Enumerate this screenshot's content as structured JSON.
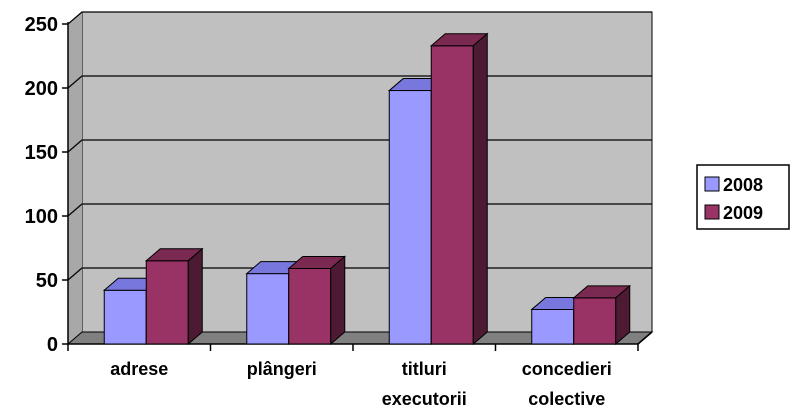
{
  "chart_data": {
    "type": "bar",
    "style": "3d-clustered-column",
    "categories": [
      [
        "adrese"
      ],
      [
        "plângeri"
      ],
      [
        "titluri",
        "executorii"
      ],
      [
        "concedieri",
        "colective"
      ]
    ],
    "series": [
      {
        "name": "2008",
        "values": [
          42,
          55,
          198,
          27
        ],
        "color": "#9999ff",
        "top_color": "#7777dd",
        "side_color": "#5555aa"
      },
      {
        "name": "2009",
        "values": [
          65,
          59,
          233,
          36
        ],
        "color": "#993366",
        "top_color": "#7a2950",
        "side_color": "#4d1a33"
      }
    ],
    "ylim": [
      0,
      250
    ],
    "yticks": [
      "0",
      "50",
      "100",
      "150",
      "200",
      "250"
    ],
    "grid": true,
    "legend": "right",
    "wall_color": "#c0c0c0",
    "floor_color": "#808080"
  }
}
